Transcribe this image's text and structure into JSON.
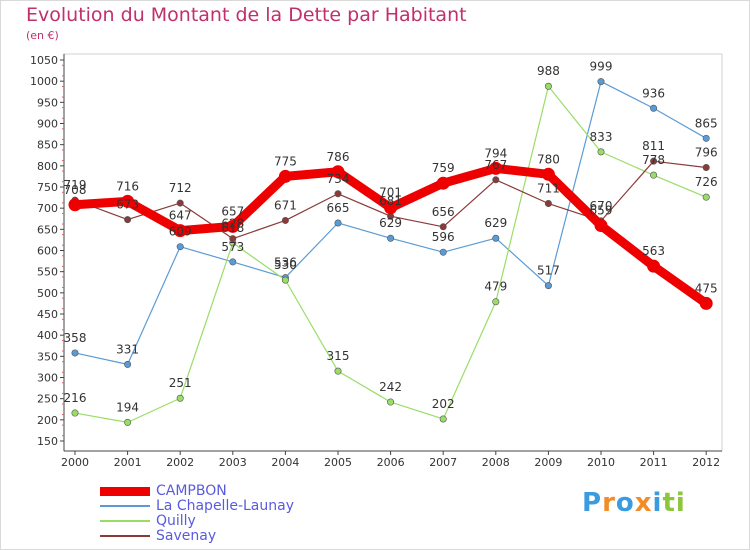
{
  "chart_data": {
    "type": "line",
    "title": "Evolution du Montant de la Dette par Habitant",
    "subtitle": "(en €)",
    "x": [
      "2000",
      "2001",
      "2002",
      "2003",
      "2004",
      "2005",
      "2006",
      "2007",
      "2008",
      "2009",
      "2010",
      "2011",
      "2012"
    ],
    "ylim": [
      150,
      1050
    ],
    "yticks": [
      150,
      200,
      250,
      300,
      350,
      400,
      450,
      500,
      550,
      600,
      650,
      700,
      750,
      800,
      850,
      900,
      950,
      1000,
      1050
    ],
    "grid": false,
    "legend_position": "bottom-left",
    "series": [
      {
        "name": "CAMPBON",
        "color": "#ee0000",
        "values": [
          708,
          716,
          647,
          657,
          775,
          786,
          701,
          759,
          794,
          780,
          659,
          563,
          475
        ]
      },
      {
        "name": "La Chapelle-Launay",
        "color": "#5b9bd5",
        "values": [
          358,
          331,
          609,
          573,
          536,
          665,
          629,
          596,
          629,
          517,
          999,
          936,
          865
        ]
      },
      {
        "name": "Quilly",
        "color": "#99dd66",
        "values": [
          216,
          194,
          251,
          618,
          530,
          315,
          242,
          202,
          479,
          988,
          833,
          778,
          726
        ]
      },
      {
        "name": "Savenay",
        "color": "#8b3a3a",
        "values": [
          719,
          673,
          712,
          628,
          671,
          734,
          681,
          656,
          767,
          711,
          670,
          811,
          796
        ]
      }
    ]
  },
  "logo": {
    "text": "Proxiti",
    "letters": [
      "P",
      "r",
      "o",
      "x",
      "i",
      "t",
      "i"
    ],
    "colors": [
      "#3a9be0",
      "#f28c28",
      "#3a9be0",
      "#f28c28",
      "#3a9be0",
      "#8cc63f",
      "#8cc63f"
    ]
  }
}
